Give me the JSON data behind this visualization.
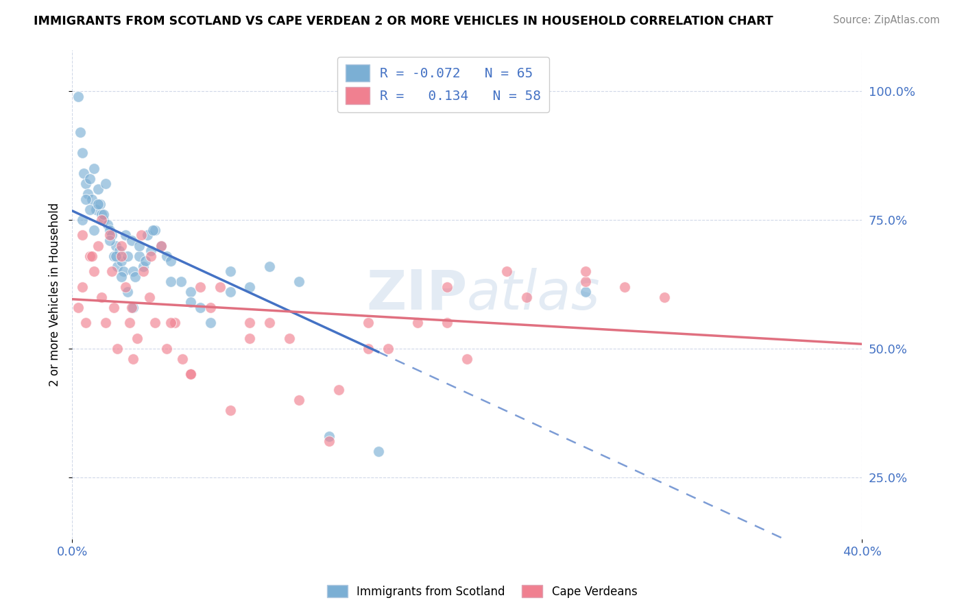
{
  "title": "IMMIGRANTS FROM SCOTLAND VS CAPE VERDEAN 2 OR MORE VEHICLES IN HOUSEHOLD CORRELATION CHART",
  "source": "Source: ZipAtlas.com",
  "ylabel": "2 or more Vehicles in Household",
  "scotland_color": "#7bafd4",
  "capeverdean_color": "#f08090",
  "scotland_line_color": "#4472c4",
  "capeverdean_line_color": "#e07080",
  "background_color": "#ffffff",
  "grid_color": "#d0d8e8",
  "watermark_zip": "ZIP",
  "watermark_atlas": "atlas",
  "xlim": [
    0.0,
    0.4
  ],
  "ylim": [
    0.13,
    1.08
  ],
  "scotland_x": [
    0.003,
    0.004,
    0.005,
    0.006,
    0.007,
    0.008,
    0.009,
    0.01,
    0.011,
    0.012,
    0.013,
    0.014,
    0.015,
    0.016,
    0.017,
    0.018,
    0.019,
    0.02,
    0.021,
    0.022,
    0.023,
    0.024,
    0.025,
    0.026,
    0.027,
    0.028,
    0.03,
    0.031,
    0.032,
    0.034,
    0.036,
    0.038,
    0.04,
    0.042,
    0.045,
    0.048,
    0.05,
    0.055,
    0.06,
    0.065,
    0.07,
    0.08,
    0.09,
    0.1,
    0.115,
    0.13,
    0.155,
    0.005,
    0.007,
    0.009,
    0.011,
    0.013,
    0.016,
    0.019,
    0.022,
    0.025,
    0.028,
    0.031,
    0.034,
    0.037,
    0.041,
    0.05,
    0.06,
    0.08,
    0.26
  ],
  "scotland_y": [
    0.99,
    0.92,
    0.88,
    0.84,
    0.82,
    0.8,
    0.83,
    0.79,
    0.85,
    0.77,
    0.81,
    0.78,
    0.76,
    0.75,
    0.82,
    0.74,
    0.73,
    0.72,
    0.68,
    0.7,
    0.66,
    0.69,
    0.67,
    0.65,
    0.72,
    0.68,
    0.71,
    0.65,
    0.64,
    0.68,
    0.66,
    0.72,
    0.69,
    0.73,
    0.7,
    0.68,
    0.67,
    0.63,
    0.61,
    0.58,
    0.55,
    0.65,
    0.62,
    0.66,
    0.63,
    0.33,
    0.3,
    0.75,
    0.79,
    0.77,
    0.73,
    0.78,
    0.76,
    0.71,
    0.68,
    0.64,
    0.61,
    0.58,
    0.7,
    0.67,
    0.73,
    0.63,
    0.59,
    0.61,
    0.61
  ],
  "capeverdean_x": [
    0.003,
    0.005,
    0.007,
    0.009,
    0.011,
    0.013,
    0.015,
    0.017,
    0.019,
    0.021,
    0.023,
    0.025,
    0.027,
    0.029,
    0.031,
    0.033,
    0.036,
    0.039,
    0.042,
    0.045,
    0.048,
    0.052,
    0.056,
    0.06,
    0.065,
    0.07,
    0.08,
    0.09,
    0.1,
    0.115,
    0.13,
    0.15,
    0.175,
    0.2,
    0.23,
    0.26,
    0.005,
    0.01,
    0.015,
    0.02,
    0.025,
    0.03,
    0.035,
    0.04,
    0.05,
    0.06,
    0.075,
    0.09,
    0.11,
    0.135,
    0.16,
    0.19,
    0.22,
    0.26,
    0.3,
    0.19,
    0.28,
    0.15
  ],
  "capeverdean_y": [
    0.58,
    0.62,
    0.55,
    0.68,
    0.65,
    0.7,
    0.6,
    0.55,
    0.72,
    0.58,
    0.5,
    0.68,
    0.62,
    0.55,
    0.48,
    0.52,
    0.65,
    0.6,
    0.55,
    0.7,
    0.5,
    0.55,
    0.48,
    0.45,
    0.62,
    0.58,
    0.38,
    0.52,
    0.55,
    0.4,
    0.32,
    0.5,
    0.55,
    0.48,
    0.6,
    0.63,
    0.72,
    0.68,
    0.75,
    0.65,
    0.7,
    0.58,
    0.72,
    0.68,
    0.55,
    0.45,
    0.62,
    0.55,
    0.52,
    0.42,
    0.5,
    0.55,
    0.65,
    0.65,
    0.6,
    0.62,
    0.62,
    0.55
  ]
}
